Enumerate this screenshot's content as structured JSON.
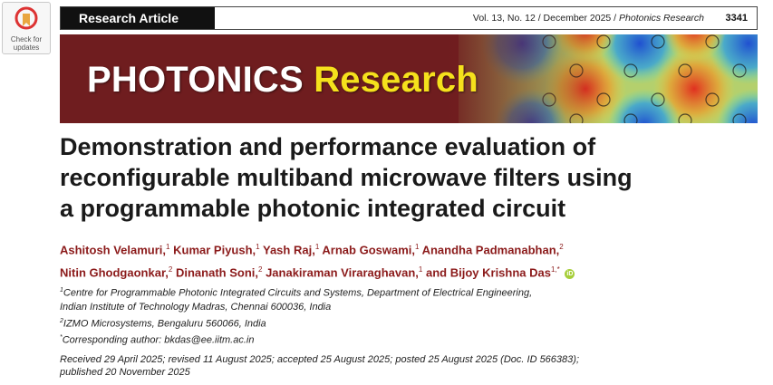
{
  "badge": {
    "line1": "Check for",
    "line2": "updates"
  },
  "header": {
    "article_type": "Research Article",
    "volume_issue": "Vol. 13, No. 12 / December 2025 / ",
    "journal_name": "Photonics Research",
    "page_number": "3341"
  },
  "banner": {
    "word1": "PHOTONICS",
    "word2": "Research"
  },
  "title": {
    "line1": "Demonstration and performance evaluation of",
    "line2": "reconfigurable multiband microwave filters using",
    "line3": "a programmable photonic integrated circuit"
  },
  "authors": [
    {
      "name": "Ashitosh Velamuri,",
      "aff": "1"
    },
    {
      "name": "Kumar Piyush,",
      "aff": "1"
    },
    {
      "name": "Yash Raj,",
      "aff": "1"
    },
    {
      "name": "Arnab Goswami,",
      "aff": "1"
    },
    {
      "name": "Anandha Padmanabhan,",
      "aff": "2"
    },
    {
      "name": "Nitin Ghodgaonkar,",
      "aff": "2"
    },
    {
      "name": "Dinanath Soni,",
      "aff": "2"
    },
    {
      "name": "Janakiraman Viraraghavan,",
      "aff": "1"
    },
    {
      "name": "and Bijoy Krishna Das",
      "aff": "1,*"
    }
  ],
  "affiliations": {
    "a1_mark": "1",
    "a1_line1": "Centre for Programmable Photonic Integrated Circuits and Systems, Department of Electrical Engineering,",
    "a1_line2": "Indian Institute of Technology Madras, Chennai 600036, India",
    "a2_mark": "2",
    "a2_line1": "IZMO Microsystems, Bengaluru 560066, India",
    "corr_mark": "*",
    "corr_line": "Corresponding author: bkdas@ee.iitm.ac.in"
  },
  "history": {
    "line1": "Received 29 April 2025; revised 11 August 2025; accepted 25 August 2025; posted 25 August 2025 (Doc. ID 566383);",
    "line2": "published 20 November 2025"
  },
  "colors": {
    "banner_bg": "#6f1d1f",
    "banner_word1": "#ffffff",
    "banner_word2": "#f5e11c",
    "author_color": "#8b1a1a",
    "orcid_green": "#a6ce39"
  }
}
